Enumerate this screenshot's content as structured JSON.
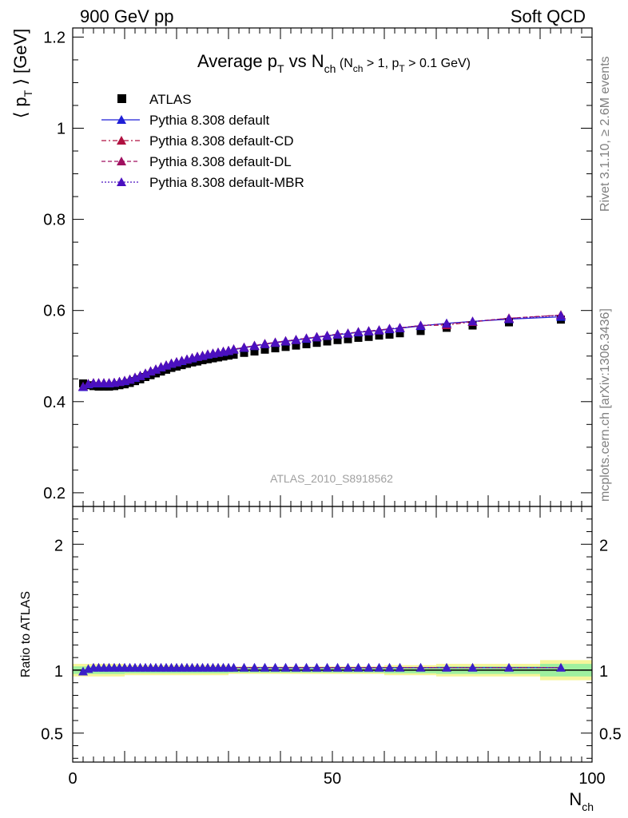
{
  "header": {
    "energy_label": "900 GeV pp",
    "category_label": "Soft QCD"
  },
  "side_labels": {
    "rivet": "Rivet 3.1.10, ≥ 2.6M events",
    "mcplots": "mcplots.cern.ch [arXiv:1306.3436]"
  },
  "watermark": "ATLAS_2010_S8918562",
  "chart_data": [
    {
      "type": "scatter",
      "title": {
        "main": "Average p",
        "main_sub": "T",
        "mid": " vs N",
        "mid_sub": "ch",
        "cond_open": " (N",
        "cond_sub1": "ch",
        "cond_mid": " > 1, p",
        "cond_sub2": "T",
        "cond_close": " > 0.1 GeV)"
      },
      "ylabel": {
        "left": "⟨ p",
        "sub": "T",
        "right": " ⟩  [GeV]"
      },
      "xlabel": {
        "main": "N",
        "sub": "ch"
      },
      "xlim": [
        0,
        100
      ],
      "ylim": [
        0.17,
        1.22
      ],
      "yticks": [
        "0.2",
        "0.4",
        "0.6",
        "0.8",
        "1",
        "1.2"
      ],
      "ytick_values": [
        0.2,
        0.4,
        0.6,
        0.8,
        1.0,
        1.2
      ],
      "legend_position": "top-left",
      "x": [
        2,
        3,
        4,
        5,
        6,
        7,
        8,
        9,
        10,
        11,
        12,
        13,
        14,
        15,
        16,
        17,
        18,
        19,
        20,
        21,
        22,
        23,
        24,
        25,
        26,
        27,
        28,
        29,
        30,
        31,
        33,
        35,
        37,
        39,
        41,
        43,
        45,
        47,
        49,
        51,
        53,
        55,
        57,
        59,
        61,
        63,
        67,
        72,
        77,
        84,
        94
      ],
      "series": [
        {
          "name": "ATLAS",
          "color": "#000000",
          "marker": "square",
          "values": [
            0.44,
            0.436,
            0.434,
            0.433,
            0.433,
            0.433,
            0.434,
            0.436,
            0.438,
            0.441,
            0.445,
            0.449,
            0.454,
            0.458,
            0.462,
            0.466,
            0.47,
            0.474,
            0.477,
            0.48,
            0.483,
            0.486,
            0.488,
            0.491,
            0.493,
            0.495,
            0.497,
            0.499,
            0.501,
            0.503,
            0.507,
            0.51,
            0.514,
            0.517,
            0.52,
            0.523,
            0.526,
            0.529,
            0.532,
            0.535,
            0.537,
            0.54,
            0.542,
            0.545,
            0.547,
            0.55,
            0.555,
            0.562,
            0.567,
            0.574,
            0.58
          ]
        },
        {
          "name": "Pythia 8.308 default",
          "color": "#1f1fd6",
          "marker": "triangle",
          "dash": "",
          "values": [
            0.432,
            0.438,
            0.44,
            0.44,
            0.44,
            0.44,
            0.441,
            0.443,
            0.445,
            0.448,
            0.452,
            0.456,
            0.461,
            0.466,
            0.47,
            0.475,
            0.479,
            0.483,
            0.486,
            0.489,
            0.492,
            0.495,
            0.498,
            0.5,
            0.503,
            0.505,
            0.507,
            0.509,
            0.511,
            0.514,
            0.518,
            0.522,
            0.526,
            0.529,
            0.532,
            0.535,
            0.538,
            0.541,
            0.544,
            0.547,
            0.549,
            0.552,
            0.554,
            0.556,
            0.559,
            0.561,
            0.566,
            0.572,
            0.576,
            0.581,
            0.586
          ]
        },
        {
          "name": "Pythia 8.308 default-CD",
          "color": "#b01040",
          "marker": "triangle",
          "dash": "6,3,2,3",
          "values": [
            0.433,
            0.439,
            0.441,
            0.441,
            0.441,
            0.441,
            0.442,
            0.444,
            0.446,
            0.449,
            0.453,
            0.457,
            0.462,
            0.467,
            0.471,
            0.476,
            0.48,
            0.484,
            0.487,
            0.49,
            0.493,
            0.496,
            0.499,
            0.501,
            0.504,
            0.506,
            0.508,
            0.51,
            0.512,
            0.515,
            0.519,
            0.523,
            0.527,
            0.53,
            0.533,
            0.536,
            0.539,
            0.542,
            0.545,
            0.548,
            0.55,
            0.553,
            0.555,
            0.557,
            0.56,
            0.562,
            0.567,
            0.568,
            0.575,
            0.583,
            0.59
          ]
        },
        {
          "name": "Pythia 8.308 default-DL",
          "color": "#a01060",
          "marker": "triangle",
          "dash": "5,3",
          "values": [
            0.433,
            0.439,
            0.441,
            0.441,
            0.441,
            0.441,
            0.442,
            0.444,
            0.446,
            0.449,
            0.453,
            0.457,
            0.462,
            0.467,
            0.471,
            0.476,
            0.48,
            0.484,
            0.487,
            0.49,
            0.493,
            0.496,
            0.499,
            0.501,
            0.504,
            0.506,
            0.508,
            0.51,
            0.512,
            0.515,
            0.519,
            0.523,
            0.527,
            0.53,
            0.533,
            0.536,
            0.539,
            0.542,
            0.545,
            0.548,
            0.55,
            0.553,
            0.555,
            0.557,
            0.56,
            0.562,
            0.567,
            0.571,
            0.576,
            0.583,
            0.59
          ]
        },
        {
          "name": "Pythia 8.308 default-MBR",
          "color": "#4a10c0",
          "marker": "triangle",
          "dash": "2,2",
          "values": [
            0.433,
            0.439,
            0.441,
            0.441,
            0.441,
            0.441,
            0.442,
            0.444,
            0.446,
            0.449,
            0.453,
            0.457,
            0.462,
            0.467,
            0.471,
            0.476,
            0.48,
            0.484,
            0.487,
            0.49,
            0.493,
            0.496,
            0.499,
            0.501,
            0.504,
            0.506,
            0.508,
            0.51,
            0.512,
            0.515,
            0.519,
            0.523,
            0.527,
            0.53,
            0.533,
            0.536,
            0.539,
            0.542,
            0.545,
            0.548,
            0.55,
            0.553,
            0.555,
            0.557,
            0.56,
            0.562,
            0.567,
            0.571,
            0.576,
            0.582,
            0.589
          ]
        }
      ]
    },
    {
      "type": "scatter",
      "ylabel": "Ratio to ATLAS",
      "xlim": [
        0,
        100
      ],
      "ylim": [
        0.27,
        2.3
      ],
      "yticks": [
        "0.5",
        "1",
        "2"
      ],
      "ytick_values": [
        0.5,
        1.0,
        2.0
      ],
      "xticks": [
        "0",
        "50",
        "100"
      ],
      "xtick_values": [
        0,
        50,
        100
      ],
      "ratio_x": [
        2,
        3,
        4,
        5,
        6,
        7,
        8,
        9,
        10,
        11,
        12,
        13,
        14,
        15,
        16,
        17,
        18,
        19,
        20,
        21,
        22,
        23,
        24,
        25,
        26,
        27,
        28,
        29,
        30,
        31,
        33,
        35,
        37,
        39,
        41,
        43,
        45,
        47,
        49,
        51,
        53,
        55,
        57,
        59,
        61,
        63,
        67,
        72,
        77,
        84,
        94
      ],
      "ratio_values": [
        0.99,
        1.01,
        1.02,
        1.02,
        1.02,
        1.02,
        1.02,
        1.02,
        1.02,
        1.02,
        1.02,
        1.02,
        1.02,
        1.02,
        1.02,
        1.02,
        1.02,
        1.02,
        1.02,
        1.02,
        1.02,
        1.02,
        1.02,
        1.02,
        1.02,
        1.02,
        1.02,
        1.02,
        1.02,
        1.02,
        1.02,
        1.02,
        1.02,
        1.02,
        1.02,
        1.02,
        1.02,
        1.02,
        1.02,
        1.02,
        1.02,
        1.02,
        1.02,
        1.02,
        1.02,
        1.02,
        1.02,
        1.02,
        1.02,
        1.02,
        1.02
      ],
      "band_edges": [
        0,
        10,
        30,
        60,
        70,
        90,
        100
      ],
      "band_yellow": [
        0.05,
        0.04,
        0.03,
        0.04,
        0.05,
        0.08
      ],
      "band_green": [
        0.03,
        0.025,
        0.02,
        0.025,
        0.03,
        0.05
      ]
    }
  ]
}
